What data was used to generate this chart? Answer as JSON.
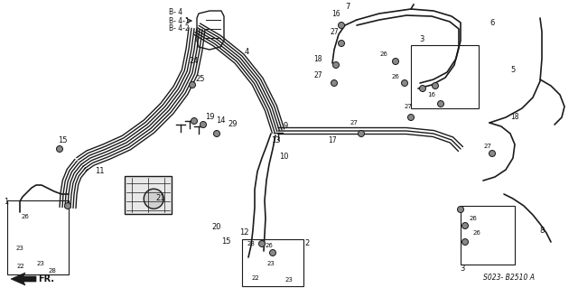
{
  "bg_color": "#ffffff",
  "line_color": "#1a1a1a",
  "text_color": "#111111",
  "fig_width": 6.4,
  "fig_height": 3.19,
  "dpi": 100,
  "diagram_code": "S023- B2510 A"
}
